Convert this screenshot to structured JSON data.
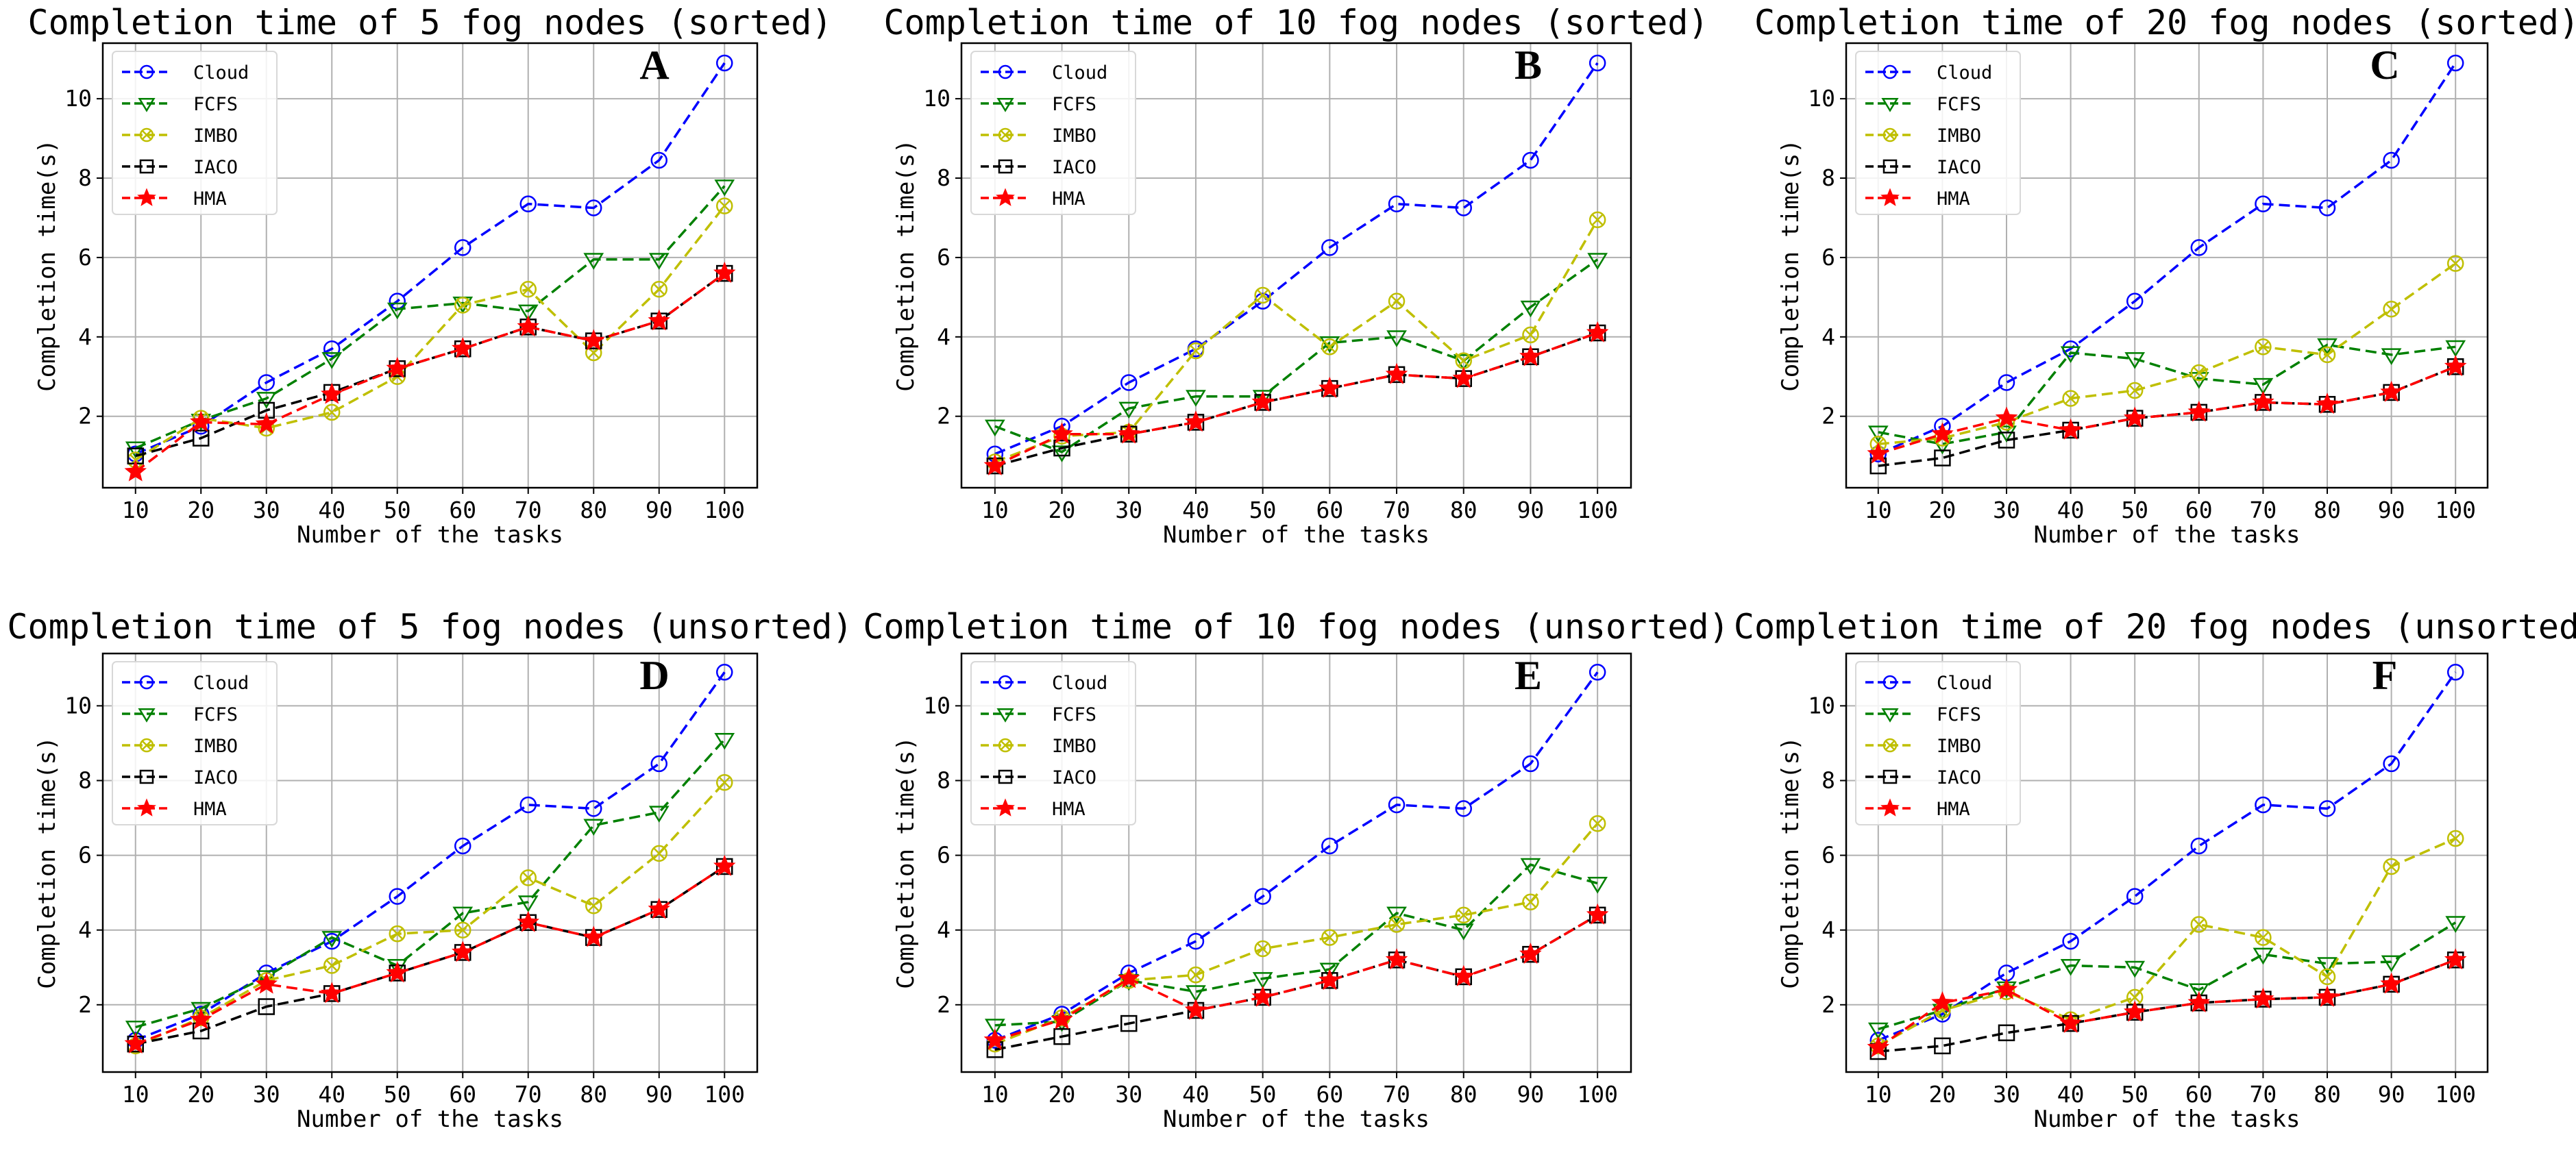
{
  "chart_data": [
    {
      "type": "line",
      "panel": "A",
      "title": "Completion time of 5 fog nodes (sorted)",
      "xlabel": "Number of the tasks",
      "ylabel": "Completion time(s)",
      "x": [
        10,
        20,
        30,
        40,
        50,
        60,
        70,
        80,
        90,
        100
      ],
      "yticks": [
        2,
        4,
        6,
        8,
        10
      ],
      "ylim": [
        0.2,
        11.4
      ],
      "grid": true,
      "legend_position": "top-left",
      "series": [
        {
          "name": "Cloud",
          "color": "#0000ff",
          "marker": "circle",
          "values": [
            1.05,
            1.75,
            2.85,
            3.7,
            4.9,
            6.25,
            7.35,
            7.25,
            8.45,
            10.9
          ]
        },
        {
          "name": "FCFS",
          "color": "#008000",
          "marker": "triangle-down",
          "values": [
            1.2,
            1.9,
            2.45,
            3.45,
            4.7,
            4.85,
            4.65,
            5.95,
            5.95,
            7.8
          ]
        },
        {
          "name": "IMBO",
          "color": "#bfbf00",
          "marker": "circle-x",
          "values": [
            0.9,
            1.95,
            1.7,
            2.1,
            3.0,
            4.8,
            5.2,
            3.6,
            5.2,
            7.3
          ]
        },
        {
          "name": "IACO",
          "color": "#000000",
          "marker": "square",
          "values": [
            1.0,
            1.45,
            2.15,
            2.6,
            3.2,
            3.7,
            4.25,
            3.9,
            4.4,
            5.6
          ]
        },
        {
          "name": "HMA",
          "color": "#ff0000",
          "marker": "star",
          "values": [
            0.6,
            1.85,
            1.8,
            2.55,
            3.2,
            3.7,
            4.25,
            3.9,
            4.4,
            5.6
          ]
        }
      ]
    },
    {
      "type": "line",
      "panel": "B",
      "title": "Completion time of 10 fog nodes (sorted)",
      "xlabel": "Number of the tasks",
      "ylabel": "Completion time(s)",
      "x": [
        10,
        20,
        30,
        40,
        50,
        60,
        70,
        80,
        90,
        100
      ],
      "yticks": [
        2,
        4,
        6,
        8,
        10
      ],
      "ylim": [
        0.2,
        11.4
      ],
      "grid": true,
      "legend_position": "top-left",
      "series": [
        {
          "name": "Cloud",
          "color": "#0000ff",
          "marker": "circle",
          "values": [
            1.05,
            1.75,
            2.85,
            3.7,
            4.9,
            6.25,
            7.35,
            7.25,
            8.45,
            10.9
          ]
        },
        {
          "name": "FCFS",
          "color": "#008000",
          "marker": "triangle-down",
          "values": [
            1.75,
            1.1,
            2.2,
            2.5,
            2.5,
            3.85,
            4.0,
            3.4,
            4.75,
            5.95
          ]
        },
        {
          "name": "IMBO",
          "color": "#bfbf00",
          "marker": "circle-x",
          "values": [
            0.85,
            1.5,
            1.6,
            3.65,
            5.05,
            3.75,
            4.9,
            3.4,
            4.05,
            6.95
          ]
        },
        {
          "name": "IACO",
          "color": "#000000",
          "marker": "square",
          "values": [
            0.75,
            1.2,
            1.55,
            1.85,
            2.35,
            2.7,
            3.05,
            2.95,
            3.5,
            4.1
          ]
        },
        {
          "name": "HMA",
          "color": "#ff0000",
          "marker": "star",
          "values": [
            0.75,
            1.55,
            1.55,
            1.85,
            2.35,
            2.7,
            3.05,
            2.95,
            3.5,
            4.1
          ]
        }
      ]
    },
    {
      "type": "line",
      "panel": "C",
      "title": "Completion time of 20 fog nodes (sorted)",
      "xlabel": "Number of the tasks",
      "ylabel": "Completion time(s)",
      "x": [
        10,
        20,
        30,
        40,
        50,
        60,
        70,
        80,
        90,
        100
      ],
      "yticks": [
        2,
        4,
        6,
        8,
        10
      ],
      "ylim": [
        0.2,
        11.4
      ],
      "grid": true,
      "legend_position": "top-left",
      "series": [
        {
          "name": "Cloud",
          "color": "#0000ff",
          "marker": "circle",
          "values": [
            1.05,
            1.75,
            2.85,
            3.7,
            4.9,
            6.25,
            7.35,
            7.25,
            8.45,
            10.9
          ]
        },
        {
          "name": "FCFS",
          "color": "#008000",
          "marker": "triangle-down",
          "values": [
            1.6,
            1.3,
            1.6,
            3.6,
            3.45,
            2.95,
            2.8,
            3.8,
            3.55,
            3.75
          ]
        },
        {
          "name": "IMBO",
          "color": "#bfbf00",
          "marker": "circle-x",
          "values": [
            1.3,
            1.45,
            1.85,
            2.45,
            2.65,
            3.1,
            3.75,
            3.55,
            4.7,
            5.85
          ]
        },
        {
          "name": "IACO",
          "color": "#000000",
          "marker": "square",
          "values": [
            0.75,
            0.95,
            1.4,
            1.65,
            1.95,
            2.1,
            2.35,
            2.3,
            2.6,
            3.25
          ]
        },
        {
          "name": "HMA",
          "color": "#ff0000",
          "marker": "star",
          "values": [
            1.05,
            1.55,
            1.95,
            1.65,
            1.95,
            2.1,
            2.35,
            2.3,
            2.6,
            3.25
          ]
        }
      ]
    },
    {
      "type": "line",
      "panel": "D",
      "title": "Completion time of 5 fog nodes (unsorted)",
      "xlabel": "Number of the tasks",
      "ylabel": "Completion time(s)",
      "x": [
        10,
        20,
        30,
        40,
        50,
        60,
        70,
        80,
        90,
        100
      ],
      "yticks": [
        2,
        4,
        6,
        8,
        10
      ],
      "ylim": [
        0.2,
        11.4
      ],
      "grid": true,
      "legend_position": "top-left",
      "series": [
        {
          "name": "Cloud",
          "color": "#0000ff",
          "marker": "circle",
          "values": [
            1.05,
            1.75,
            2.85,
            3.7,
            4.9,
            6.25,
            7.35,
            7.25,
            8.45,
            10.9
          ]
        },
        {
          "name": "FCFS",
          "color": "#008000",
          "marker": "triangle-down",
          "values": [
            1.4,
            1.9,
            2.75,
            3.8,
            3.05,
            4.45,
            4.75,
            6.8,
            7.15,
            9.1
          ]
        },
        {
          "name": "IMBO",
          "color": "#bfbf00",
          "marker": "circle-x",
          "values": [
            0.9,
            1.65,
            2.65,
            3.05,
            3.9,
            4.0,
            5.4,
            4.65,
            6.05,
            7.95
          ]
        },
        {
          "name": "IACO",
          "color": "#000000",
          "marker": "square",
          "values": [
            0.95,
            1.3,
            1.95,
            2.3,
            2.85,
            3.4,
            4.2,
            3.8,
            4.55,
            5.7
          ]
        },
        {
          "name": "HMA",
          "color": "#ff0000",
          "marker": "star",
          "values": [
            0.95,
            1.6,
            2.55,
            2.3,
            2.85,
            3.4,
            4.2,
            3.8,
            4.55,
            5.7
          ]
        }
      ]
    },
    {
      "type": "line",
      "panel": "E",
      "title": "Completion time of 10 fog nodes (unsorted)",
      "xlabel": "Number of the tasks",
      "ylabel": "Completion time(s)",
      "x": [
        10,
        20,
        30,
        40,
        50,
        60,
        70,
        80,
        90,
        100
      ],
      "yticks": [
        2,
        4,
        6,
        8,
        10
      ],
      "ylim": [
        0.2,
        11.4
      ],
      "grid": true,
      "legend_position": "top-left",
      "series": [
        {
          "name": "Cloud",
          "color": "#0000ff",
          "marker": "circle",
          "values": [
            1.05,
            1.75,
            2.85,
            3.7,
            4.9,
            6.25,
            7.35,
            7.25,
            8.45,
            10.9
          ]
        },
        {
          "name": "FCFS",
          "color": "#008000",
          "marker": "triangle-down",
          "values": [
            1.45,
            1.55,
            2.65,
            2.35,
            2.7,
            2.95,
            4.45,
            4.0,
            5.75,
            5.25
          ]
        },
        {
          "name": "IMBO",
          "color": "#bfbf00",
          "marker": "circle-x",
          "values": [
            0.95,
            1.65,
            2.65,
            2.8,
            3.5,
            3.8,
            4.15,
            4.4,
            4.75,
            6.85
          ]
        },
        {
          "name": "IACO",
          "color": "#000000",
          "marker": "square",
          "values": [
            0.8,
            1.15,
            1.5,
            1.85,
            2.2,
            2.65,
            3.2,
            2.75,
            3.35,
            4.4
          ]
        },
        {
          "name": "HMA",
          "color": "#ff0000",
          "marker": "star",
          "values": [
            1.05,
            1.6,
            2.7,
            1.85,
            2.2,
            2.65,
            3.2,
            2.75,
            3.35,
            4.4
          ]
        }
      ]
    },
    {
      "type": "line",
      "panel": "F",
      "title": "Completion time of 20 fog nodes (unsorted)",
      "xlabel": "Number of the tasks",
      "ylabel": "Completion time(s)",
      "x": [
        10,
        20,
        30,
        40,
        50,
        60,
        70,
        80,
        90,
        100
      ],
      "yticks": [
        2,
        4,
        6,
        8,
        10
      ],
      "ylim": [
        0.2,
        11.4
      ],
      "grid": true,
      "legend_position": "top-left",
      "series": [
        {
          "name": "Cloud",
          "color": "#0000ff",
          "marker": "circle",
          "values": [
            1.05,
            1.75,
            2.85,
            3.7,
            4.9,
            6.25,
            7.35,
            7.25,
            8.45,
            10.9
          ]
        },
        {
          "name": "FCFS",
          "color": "#008000",
          "marker": "triangle-down",
          "values": [
            1.35,
            1.85,
            2.45,
            3.05,
            3.0,
            2.4,
            3.35,
            3.1,
            3.15,
            4.2
          ]
        },
        {
          "name": "IMBO",
          "color": "#bfbf00",
          "marker": "circle-x",
          "values": [
            0.9,
            1.85,
            2.35,
            1.6,
            2.2,
            4.15,
            3.8,
            2.75,
            5.7,
            6.45
          ]
        },
        {
          "name": "IACO",
          "color": "#000000",
          "marker": "square",
          "values": [
            0.75,
            0.9,
            1.25,
            1.5,
            1.8,
            2.05,
            2.15,
            2.2,
            2.55,
            3.2
          ]
        },
        {
          "name": "HMA",
          "color": "#ff0000",
          "marker": "star",
          "values": [
            0.85,
            2.05,
            2.4,
            1.5,
            1.8,
            2.05,
            2.15,
            2.2,
            2.55,
            3.2
          ]
        }
      ]
    }
  ]
}
